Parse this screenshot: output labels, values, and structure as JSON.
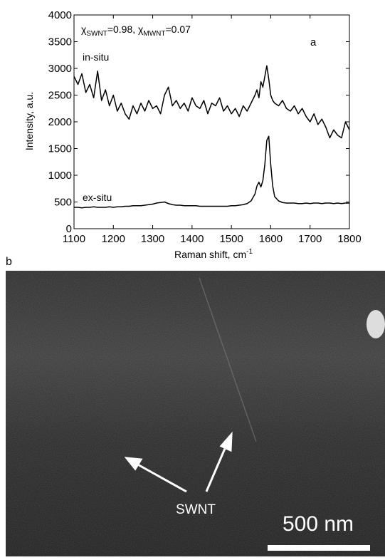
{
  "chart_data": {
    "type": "line",
    "annotation_parts": [
      "χ",
      "SWNT",
      "=0.98, χ",
      "MWNT",
      "=0.07"
    ],
    "panel_label": "a",
    "xlabel": "Raman shift, cm",
    "xlabel_superscript": "-1",
    "ylabel": "Intensity, a.u.",
    "x": [
      1100,
      1110,
      1120,
      1130,
      1140,
      1150,
      1160,
      1170,
      1180,
      1190,
      1200,
      1210,
      1220,
      1230,
      1240,
      1250,
      1260,
      1270,
      1280,
      1290,
      1300,
      1310,
      1320,
      1330,
      1340,
      1350,
      1360,
      1370,
      1380,
      1390,
      1400,
      1410,
      1420,
      1430,
      1440,
      1450,
      1460,
      1470,
      1480,
      1490,
      1500,
      1510,
      1520,
      1530,
      1540,
      1550,
      1560,
      1565,
      1570,
      1575,
      1580,
      1585,
      1590,
      1595,
      1600,
      1605,
      1610,
      1620,
      1630,
      1640,
      1650,
      1660,
      1670,
      1680,
      1690,
      1700,
      1710,
      1720,
      1730,
      1740,
      1750,
      1760,
      1770,
      1780,
      1790,
      1800
    ],
    "series": [
      {
        "name": "in-situ",
        "color": "#000000",
        "values": [
          2850,
          2700,
          2900,
          2550,
          2700,
          2450,
          2950,
          2400,
          2600,
          2300,
          2500,
          2200,
          2350,
          2150,
          2050,
          2300,
          2150,
          2350,
          2200,
          2400,
          2250,
          2300,
          2150,
          2500,
          2650,
          2300,
          2400,
          2250,
          2350,
          2200,
          2450,
          2300,
          2250,
          2400,
          2150,
          2350,
          2300,
          2450,
          2200,
          2300,
          2150,
          2250,
          2100,
          2300,
          2200,
          2350,
          2500,
          2600,
          2450,
          2750,
          2650,
          2850,
          3050,
          2800,
          2500,
          2400,
          2350,
          2300,
          2400,
          2250,
          2200,
          2300,
          2150,
          2250,
          2100,
          2000,
          2150,
          1950,
          2050,
          1900,
          1700,
          1850,
          1750,
          1700,
          2000,
          1850
        ]
      },
      {
        "name": "ex-situ",
        "color": "#000000",
        "values": [
          400,
          400,
          390,
          400,
          400,
          410,
          400,
          400,
          400,
          410,
          400,
          410,
          410,
          420,
          420,
          430,
          430,
          430,
          440,
          450,
          460,
          480,
          490,
          500,
          470,
          450,
          440,
          440,
          430,
          430,
          430,
          430,
          420,
          420,
          420,
          420,
          420,
          420,
          420,
          420,
          430,
          430,
          440,
          450,
          470,
          520,
          650,
          800,
          870,
          780,
          900,
          1200,
          1650,
          1730,
          1200,
          800,
          600,
          520,
          490,
          480,
          480,
          480,
          470,
          470,
          480,
          470,
          480,
          480,
          470,
          480,
          480,
          470,
          480,
          470,
          480,
          480
        ]
      }
    ],
    "xlim": [
      1100,
      1800
    ],
    "xticks": [
      1100,
      1200,
      1300,
      1400,
      1500,
      1600,
      1700,
      1800
    ],
    "ylim": [
      0,
      4000
    ],
    "yticks": [
      0,
      500,
      1000,
      1500,
      2000,
      2500,
      3000,
      3500,
      4000
    ],
    "grid": false
  },
  "image": {
    "panel_label": "b",
    "arrow_label": "SWNT",
    "scale_bar": "500 nm"
  }
}
